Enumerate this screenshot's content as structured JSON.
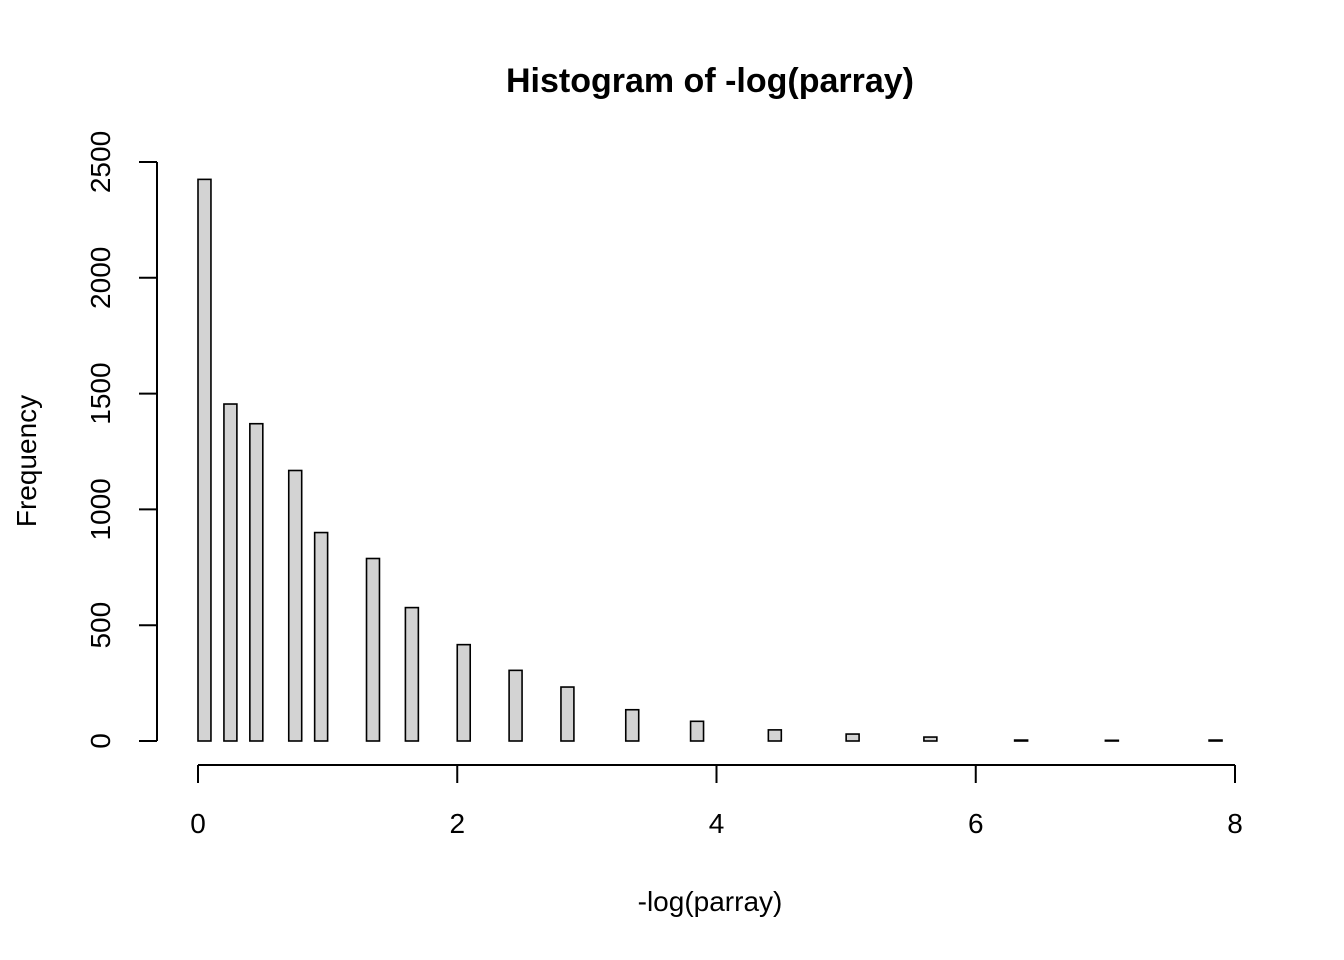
{
  "chart_data": {
    "type": "bar",
    "title": "Histogram of -log(parray)",
    "xlabel": "-log(parray)",
    "ylabel": "Frequency",
    "xlim": [
      0,
      8
    ],
    "ylim": [
      0,
      2500
    ],
    "x_ticks": [
      0,
      2,
      4,
      6,
      8
    ],
    "x_tick_labels": [
      "0",
      "2",
      "4",
      "6",
      "8"
    ],
    "y_ticks": [
      0,
      500,
      1000,
      1500,
      2000,
      2500
    ],
    "y_tick_labels": [
      "0",
      "500",
      "1000",
      "1500",
      "2000",
      "2500"
    ],
    "bin_width": 0.1,
    "bins": [
      {
        "x": 0.0,
        "count": 2425
      },
      {
        "x": 0.2,
        "count": 1455
      },
      {
        "x": 0.4,
        "count": 1370
      },
      {
        "x": 0.7,
        "count": 1168
      },
      {
        "x": 0.9,
        "count": 900
      },
      {
        "x": 1.3,
        "count": 788
      },
      {
        "x": 1.6,
        "count": 576
      },
      {
        "x": 2.0,
        "count": 416
      },
      {
        "x": 2.4,
        "count": 305
      },
      {
        "x": 2.8,
        "count": 233
      },
      {
        "x": 3.3,
        "count": 135
      },
      {
        "x": 3.8,
        "count": 85
      },
      {
        "x": 4.4,
        "count": 48
      },
      {
        "x": 5.0,
        "count": 30
      },
      {
        "x": 5.6,
        "count": 17
      },
      {
        "x": 6.3,
        "count": 4
      },
      {
        "x": 7.0,
        "count": 3
      },
      {
        "x": 7.8,
        "count": 4
      }
    ],
    "bar_fill": "#d3d3d3",
    "bar_stroke": "#000000",
    "grid": false,
    "legend": "none"
  }
}
